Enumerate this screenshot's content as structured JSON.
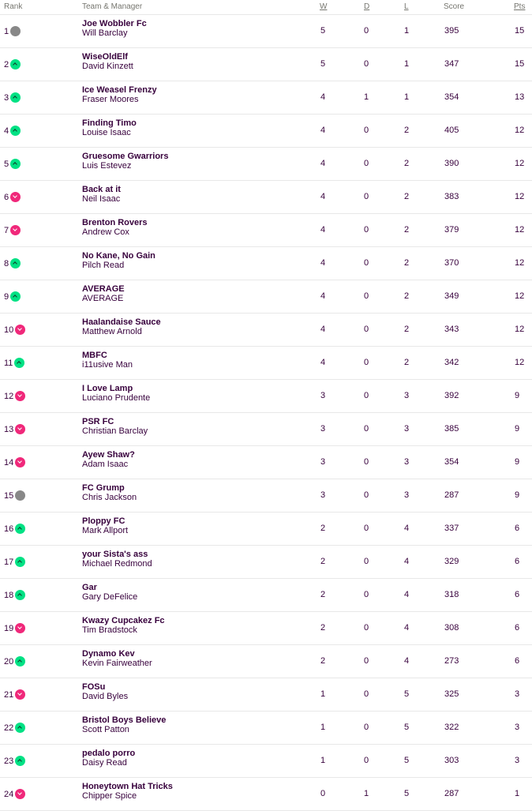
{
  "header": {
    "rank": "Rank",
    "team": "Team & Manager",
    "w": "W",
    "d": "D",
    "l": "L",
    "score": "Score",
    "pts": "Pts"
  },
  "colors": {
    "up": "#01e184",
    "down": "#f0287a",
    "same": "#888888",
    "text": "#37003c"
  },
  "rows": [
    {
      "rank": "1",
      "move": "same",
      "team": "Joe Wobbler Fc",
      "manager": "Will Barclay",
      "w": "5",
      "d": "0",
      "l": "1",
      "score": "395",
      "pts": "15"
    },
    {
      "rank": "2",
      "move": "up",
      "team": "WiseOldElf",
      "manager": "David Kinzett",
      "w": "5",
      "d": "0",
      "l": "1",
      "score": "347",
      "pts": "15"
    },
    {
      "rank": "3",
      "move": "up",
      "team": "Ice Weasel Frenzy",
      "manager": "Fraser Moores",
      "w": "4",
      "d": "1",
      "l": "1",
      "score": "354",
      "pts": "13"
    },
    {
      "rank": "4",
      "move": "up",
      "team": "Finding Timo",
      "manager": "Louise Isaac",
      "w": "4",
      "d": "0",
      "l": "2",
      "score": "405",
      "pts": "12"
    },
    {
      "rank": "5",
      "move": "up",
      "team": "Gruesome Gwarriors",
      "manager": "Luis Estevez",
      "w": "4",
      "d": "0",
      "l": "2",
      "score": "390",
      "pts": "12"
    },
    {
      "rank": "6",
      "move": "down",
      "team": "Back at it",
      "manager": "Neil Isaac",
      "w": "4",
      "d": "0",
      "l": "2",
      "score": "383",
      "pts": "12"
    },
    {
      "rank": "7",
      "move": "down",
      "team": "Brenton Rovers",
      "manager": "Andrew Cox",
      "w": "4",
      "d": "0",
      "l": "2",
      "score": "379",
      "pts": "12"
    },
    {
      "rank": "8",
      "move": "up",
      "team": "No Kane, No Gain",
      "manager": "Pilch Read",
      "w": "4",
      "d": "0",
      "l": "2",
      "score": "370",
      "pts": "12"
    },
    {
      "rank": "9",
      "move": "up",
      "team": "AVERAGE",
      "manager": "AVERAGE",
      "w": "4",
      "d": "0",
      "l": "2",
      "score": "349",
      "pts": "12"
    },
    {
      "rank": "10",
      "move": "down",
      "team": "Haalandaise Sauce",
      "manager": "Matthew Arnold",
      "w": "4",
      "d": "0",
      "l": "2",
      "score": "343",
      "pts": "12"
    },
    {
      "rank": "11",
      "move": "up",
      "team": "MBFC",
      "manager": "i11usive Man",
      "w": "4",
      "d": "0",
      "l": "2",
      "score": "342",
      "pts": "12"
    },
    {
      "rank": "12",
      "move": "down",
      "team": "I Love Lamp",
      "manager": "Luciano Prudente",
      "w": "3",
      "d": "0",
      "l": "3",
      "score": "392",
      "pts": "9"
    },
    {
      "rank": "13",
      "move": "down",
      "team": "PSR FC",
      "manager": "Christian Barclay",
      "w": "3",
      "d": "0",
      "l": "3",
      "score": "385",
      "pts": "9"
    },
    {
      "rank": "14",
      "move": "down",
      "team": "Ayew Shaw?",
      "manager": "Adam Isaac",
      "w": "3",
      "d": "0",
      "l": "3",
      "score": "354",
      "pts": "9"
    },
    {
      "rank": "15",
      "move": "same",
      "team": "FC Grump",
      "manager": "Chris Jackson",
      "w": "3",
      "d": "0",
      "l": "3",
      "score": "287",
      "pts": "9"
    },
    {
      "rank": "16",
      "move": "up",
      "team": "Ploppy FC",
      "manager": "Mark Allport",
      "w": "2",
      "d": "0",
      "l": "4",
      "score": "337",
      "pts": "6"
    },
    {
      "rank": "17",
      "move": "up",
      "team": "your Sista's ass",
      "manager": "Michael Redmond",
      "w": "2",
      "d": "0",
      "l": "4",
      "score": "329",
      "pts": "6"
    },
    {
      "rank": "18",
      "move": "up",
      "team": "Gar",
      "manager": "Gary DeFelice",
      "w": "2",
      "d": "0",
      "l": "4",
      "score": "318",
      "pts": "6"
    },
    {
      "rank": "19",
      "move": "down",
      "team": "Kwazy Cupcakez Fc",
      "manager": "Tim Bradstock",
      "w": "2",
      "d": "0",
      "l": "4",
      "score": "308",
      "pts": "6"
    },
    {
      "rank": "20",
      "move": "up",
      "team": "Dynamo Kev",
      "manager": "Kevin Fairweather",
      "w": "2",
      "d": "0",
      "l": "4",
      "score": "273",
      "pts": "6"
    },
    {
      "rank": "21",
      "move": "down",
      "team": "FOSu",
      "manager": "David Byles",
      "w": "1",
      "d": "0",
      "l": "5",
      "score": "325",
      "pts": "3"
    },
    {
      "rank": "22",
      "move": "up",
      "team": "Bristol Boys Believe",
      "manager": "Scott Patton",
      "w": "1",
      "d": "0",
      "l": "5",
      "score": "322",
      "pts": "3"
    },
    {
      "rank": "23",
      "move": "up",
      "team": "pedalo porro",
      "manager": "Daisy Read",
      "w": "1",
      "d": "0",
      "l": "5",
      "score": "303",
      "pts": "3"
    },
    {
      "rank": "24",
      "move": "down",
      "team": "Honeytown Hat Tricks",
      "manager": "Chipper Spice",
      "w": "0",
      "d": "1",
      "l": "5",
      "score": "287",
      "pts": "1"
    }
  ]
}
